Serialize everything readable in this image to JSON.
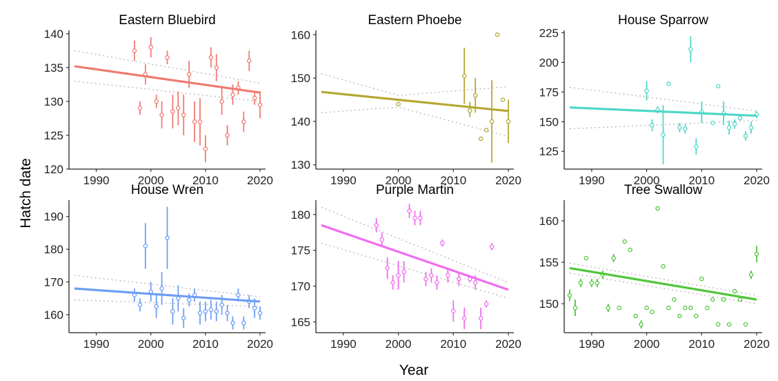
{
  "figure": {
    "ylabel": "Hatch date",
    "xlabel": "Year"
  },
  "chart_data": [
    {
      "type": "scatter",
      "title": "Eastern Bluebird",
      "color": "#F07A70",
      "xlim": [
        1985,
        2021
      ],
      "ylim": [
        120,
        140.5
      ],
      "yticks": [
        120,
        125,
        130,
        135,
        140
      ],
      "xticks": [
        1990,
        2000,
        2010,
        2020
      ],
      "points": [
        {
          "x": 1997,
          "y": 137.5,
          "lo": 136,
          "hi": 139
        },
        {
          "x": 1998,
          "y": 129,
          "lo": 128,
          "hi": 130
        },
        {
          "x": 1999,
          "y": 134,
          "lo": 132.5,
          "hi": 135.5
        },
        {
          "x": 2000,
          "y": 138,
          "lo": 136.5,
          "hi": 139.5
        },
        {
          "x": 2001,
          "y": 130,
          "lo": 129,
          "hi": 131
        },
        {
          "x": 2002,
          "y": 128,
          "lo": 126,
          "hi": 130
        },
        {
          "x": 2003,
          "y": 136.5,
          "lo": 135.5,
          "hi": 137.5
        },
        {
          "x": 2004,
          "y": 128.5,
          "lo": 126,
          "hi": 131
        },
        {
          "x": 2005,
          "y": 129,
          "lo": 126.5,
          "hi": 131.5
        },
        {
          "x": 2006,
          "y": 128,
          "lo": 125,
          "hi": 131
        },
        {
          "x": 2007,
          "y": 134,
          "lo": 132,
          "hi": 136
        },
        {
          "x": 2008,
          "y": 127,
          "lo": 124,
          "hi": 130
        },
        {
          "x": 2009,
          "y": 127,
          "lo": 123.5,
          "hi": 130.5
        },
        {
          "x": 2010,
          "y": 123,
          "lo": 121,
          "hi": 125
        },
        {
          "x": 2011,
          "y": 136.5,
          "lo": 135,
          "hi": 138
        },
        {
          "x": 2012,
          "y": 135,
          "lo": 133,
          "hi": 137
        },
        {
          "x": 2013,
          "y": 130,
          "lo": 128,
          "hi": 132
        },
        {
          "x": 2014,
          "y": 125,
          "lo": 123.5,
          "hi": 126.5
        },
        {
          "x": 2015,
          "y": 131,
          "lo": 129.5,
          "hi": 132.5
        },
        {
          "x": 2016,
          "y": 132,
          "lo": 131,
          "hi": 133
        },
        {
          "x": 2017,
          "y": 127,
          "lo": 125.5,
          "hi": 128.5
        },
        {
          "x": 2018,
          "y": 136,
          "lo": 134.5,
          "hi": 137.5
        },
        {
          "x": 2019,
          "y": 130.5,
          "lo": 129.5,
          "hi": 131.5
        },
        {
          "x": 2020,
          "y": 129.5,
          "lo": 127.5,
          "hi": 131.5
        }
      ],
      "fit": {
        "x": [
          1986,
          2020
        ],
        "y": [
          135.2,
          131.3
        ]
      },
      "ci_upper": {
        "x": [
          1986,
          2020
        ],
        "y": [
          137.5,
          132.7
        ]
      },
      "ci_lower": {
        "x": [
          1986,
          2020
        ],
        "y": [
          133,
          130
        ]
      }
    },
    {
      "type": "scatter",
      "title": "Eastern Phoebe",
      "color": "#B5A732",
      "xlim": [
        1985,
        2021
      ],
      "ylim": [
        129,
        161
      ],
      "yticks": [
        130,
        140,
        150,
        160
      ],
      "xticks": [
        1990,
        2000,
        2010,
        2020
      ],
      "points": [
        {
          "x": 2000,
          "y": 144,
          "lo": 144,
          "hi": 144
        },
        {
          "x": 2012,
          "y": 150.5,
          "lo": 144,
          "hi": 157
        },
        {
          "x": 2013,
          "y": 142.5,
          "lo": 141,
          "hi": 144.5
        },
        {
          "x": 2014,
          "y": 146,
          "lo": 142,
          "hi": 150
        },
        {
          "x": 2015,
          "y": 136,
          "lo": 136,
          "hi": 136
        },
        {
          "x": 2016,
          "y": 138,
          "lo": 138,
          "hi": 138
        },
        {
          "x": 2017,
          "y": 140,
          "lo": 130.5,
          "hi": 149.5
        },
        {
          "x": 2018,
          "y": 160,
          "lo": 160,
          "hi": 160
        },
        {
          "x": 2019,
          "y": 145,
          "lo": 145,
          "hi": 145
        },
        {
          "x": 2020,
          "y": 140,
          "lo": 135,
          "hi": 145
        }
      ],
      "fit": {
        "x": [
          1986,
          2020
        ],
        "y": [
          146.8,
          142.4
        ]
      },
      "ci_upper": {
        "x": [
          1986,
          2000,
          2020
        ],
        "y": [
          151,
          146,
          148
        ]
      },
      "ci_lower": {
        "x": [
          1986,
          2000,
          2020
        ],
        "y": [
          142,
          143.3,
          136.5
        ]
      }
    },
    {
      "type": "scatter",
      "title": "House Sparrow",
      "color": "#4ED7C8",
      "xlim": [
        1985,
        2021
      ],
      "ylim": [
        110,
        227
      ],
      "yticks": [
        125,
        150,
        175,
        200,
        225
      ],
      "xticks": [
        1990,
        2000,
        2010,
        2020
      ],
      "points": [
        {
          "x": 2000,
          "y": 176,
          "lo": 168,
          "hi": 184
        },
        {
          "x": 2001,
          "y": 147,
          "lo": 142,
          "hi": 152
        },
        {
          "x": 2002,
          "y": 160,
          "lo": 157,
          "hi": 163
        },
        {
          "x": 2003,
          "y": 139,
          "lo": 114,
          "hi": 164
        },
        {
          "x": 2004,
          "y": 182,
          "lo": 182,
          "hi": 182
        },
        {
          "x": 2006,
          "y": 145,
          "lo": 141,
          "hi": 149
        },
        {
          "x": 2007,
          "y": 144,
          "lo": 140,
          "hi": 148
        },
        {
          "x": 2008,
          "y": 211,
          "lo": 200,
          "hi": 222
        },
        {
          "x": 2009,
          "y": 129,
          "lo": 122,
          "hi": 136
        },
        {
          "x": 2010,
          "y": 158,
          "lo": 149,
          "hi": 167
        },
        {
          "x": 2012,
          "y": 149,
          "lo": 149,
          "hi": 149
        },
        {
          "x": 2013,
          "y": 180,
          "lo": 180,
          "hi": 180
        },
        {
          "x": 2014,
          "y": 157,
          "lo": 147,
          "hi": 167
        },
        {
          "x": 2015,
          "y": 145,
          "lo": 139,
          "hi": 151
        },
        {
          "x": 2016,
          "y": 148,
          "lo": 144,
          "hi": 152
        },
        {
          "x": 2017,
          "y": 153,
          "lo": 151,
          "hi": 155
        },
        {
          "x": 2018,
          "y": 138,
          "lo": 134,
          "hi": 142
        },
        {
          "x": 2019,
          "y": 145,
          "lo": 140,
          "hi": 150
        },
        {
          "x": 2020,
          "y": 156,
          "lo": 153,
          "hi": 159
        }
      ],
      "fit": {
        "x": [
          1986,
          2020
        ],
        "y": [
          162,
          155
        ]
      },
      "ci_upper": {
        "x": [
          1986,
          2020
        ],
        "y": [
          179,
          159
        ]
      },
      "ci_lower": {
        "x": [
          1986,
          2020
        ],
        "y": [
          144,
          151
        ]
      }
    },
    {
      "type": "scatter",
      "title": "House Wren",
      "color": "#6D9EF5",
      "xlim": [
        1985,
        2021
      ],
      "ylim": [
        154.5,
        195
      ],
      "yticks": [
        160,
        170,
        180,
        190
      ],
      "xticks": [
        1990,
        2000,
        2010,
        2020
      ],
      "points": [
        {
          "x": 1997,
          "y": 166,
          "lo": 164,
          "hi": 168
        },
        {
          "x": 1998,
          "y": 163,
          "lo": 161,
          "hi": 165
        },
        {
          "x": 1999,
          "y": 181,
          "lo": 174,
          "hi": 188
        },
        {
          "x": 2000,
          "y": 167,
          "lo": 164,
          "hi": 170
        },
        {
          "x": 2001,
          "y": 162.5,
          "lo": 159,
          "hi": 166
        },
        {
          "x": 2002,
          "y": 168,
          "lo": 163,
          "hi": 173
        },
        {
          "x": 2003,
          "y": 183.5,
          "lo": 174,
          "hi": 193
        },
        {
          "x": 2004,
          "y": 161,
          "lo": 157,
          "hi": 165
        },
        {
          "x": 2005,
          "y": 165,
          "lo": 161,
          "hi": 169
        },
        {
          "x": 2006,
          "y": 159,
          "lo": 156,
          "hi": 162
        },
        {
          "x": 2007,
          "y": 164.5,
          "lo": 162.5,
          "hi": 166.5
        },
        {
          "x": 2008,
          "y": 166,
          "lo": 164,
          "hi": 168
        },
        {
          "x": 2009,
          "y": 160.5,
          "lo": 157,
          "hi": 164
        },
        {
          "x": 2010,
          "y": 161,
          "lo": 158,
          "hi": 164
        },
        {
          "x": 2011,
          "y": 161.5,
          "lo": 158.5,
          "hi": 164.5
        },
        {
          "x": 2012,
          "y": 161,
          "lo": 158,
          "hi": 164
        },
        {
          "x": 2013,
          "y": 163,
          "lo": 160,
          "hi": 166
        },
        {
          "x": 2014,
          "y": 160.5,
          "lo": 158,
          "hi": 163
        },
        {
          "x": 2015,
          "y": 157.5,
          "lo": 155.5,
          "hi": 159.5
        },
        {
          "x": 2016,
          "y": 166,
          "lo": 164,
          "hi": 168
        },
        {
          "x": 2017,
          "y": 157.5,
          "lo": 155.5,
          "hi": 159.5
        },
        {
          "x": 2018,
          "y": 164,
          "lo": 162,
          "hi": 166
        },
        {
          "x": 2019,
          "y": 162,
          "lo": 159,
          "hi": 165
        },
        {
          "x": 2020,
          "y": 160.5,
          "lo": 158.5,
          "hi": 162.5
        }
      ],
      "fit": {
        "x": [
          1986,
          2020
        ],
        "y": [
          168,
          164
        ]
      },
      "ci_upper": {
        "x": [
          1986,
          2020
        ],
        "y": [
          172,
          165.5
        ]
      },
      "ci_lower": {
        "x": [
          1986,
          2020
        ],
        "y": [
          164.5,
          162.5
        ]
      }
    },
    {
      "type": "scatter",
      "title": "Purple Martin",
      "color": "#F06CF0",
      "xlim": [
        1985,
        2021
      ],
      "ylim": [
        163.5,
        182
      ],
      "yticks": [
        165,
        170,
        175,
        180
      ],
      "xticks": [
        1990,
        2000,
        2010,
        2020
      ],
      "points": [
        {
          "x": 1996,
          "y": 178.5,
          "lo": 177.5,
          "hi": 179.5
        },
        {
          "x": 1997,
          "y": 176.5,
          "lo": 175.5,
          "hi": 177.5
        },
        {
          "x": 1998,
          "y": 172.5,
          "lo": 171,
          "hi": 174
        },
        {
          "x": 1999,
          "y": 170.5,
          "lo": 169.5,
          "hi": 171.5
        },
        {
          "x": 2000,
          "y": 171.5,
          "lo": 169.5,
          "hi": 173.5
        },
        {
          "x": 2001,
          "y": 172,
          "lo": 170.5,
          "hi": 173.5
        },
        {
          "x": 2002,
          "y": 180.5,
          "lo": 179.5,
          "hi": 181.5
        },
        {
          "x": 2003,
          "y": 179.5,
          "lo": 178.5,
          "hi": 180.5
        },
        {
          "x": 2004,
          "y": 179.5,
          "lo": 178.5,
          "hi": 180.5
        },
        {
          "x": 2005,
          "y": 171,
          "lo": 170,
          "hi": 172
        },
        {
          "x": 2006,
          "y": 171.5,
          "lo": 170.5,
          "hi": 172.5
        },
        {
          "x": 2007,
          "y": 170.5,
          "lo": 169.5,
          "hi": 171.5
        },
        {
          "x": 2008,
          "y": 176,
          "lo": 175.5,
          "hi": 176.5
        },
        {
          "x": 2009,
          "y": 171.5,
          "lo": 170.5,
          "hi": 172.5
        },
        {
          "x": 2010,
          "y": 166.5,
          "lo": 165,
          "hi": 168
        },
        {
          "x": 2011,
          "y": 171,
          "lo": 170,
          "hi": 172
        },
        {
          "x": 2012,
          "y": 165.5,
          "lo": 164,
          "hi": 167
        },
        {
          "x": 2013,
          "y": 171,
          "lo": 170.5,
          "hi": 171.5
        },
        {
          "x": 2014,
          "y": 170.5,
          "lo": 169.5,
          "hi": 171.5
        },
        {
          "x": 2015,
          "y": 165.5,
          "lo": 164,
          "hi": 167
        },
        {
          "x": 2016,
          "y": 167.5,
          "lo": 167,
          "hi": 168
        },
        {
          "x": 2017,
          "y": 175.5,
          "lo": 175,
          "hi": 176
        }
      ],
      "fit": {
        "x": [
          1986,
          2020
        ],
        "y": [
          178.5,
          169.5
        ]
      },
      "ci_upper": {
        "x": [
          1986,
          2020
        ],
        "y": [
          181,
          170.5
        ]
      },
      "ci_lower": {
        "x": [
          1986,
          2020
        ],
        "y": [
          176,
          168.3
        ]
      }
    },
    {
      "type": "scatter",
      "title": "Tree Swallow",
      "color": "#4FC63A",
      "xlim": [
        1985,
        2021
      ],
      "ylim": [
        146.5,
        162.5
      ],
      "yticks": [
        150,
        155,
        160
      ],
      "xticks": [
        1990,
        2000,
        2010,
        2020
      ],
      "points": [
        {
          "x": 1986,
          "y": 151,
          "lo": 150.3,
          "hi": 151.7
        },
        {
          "x": 1987,
          "y": 149.5,
          "lo": 148.5,
          "hi": 150.5
        },
        {
          "x": 1988,
          "y": 152.5,
          "lo": 152,
          "hi": 153
        },
        {
          "x": 1989,
          "y": 155.5,
          "lo": 155.5,
          "hi": 155.5
        },
        {
          "x": 1990,
          "y": 152.5,
          "lo": 152,
          "hi": 153
        },
        {
          "x": 1991,
          "y": 152.5,
          "lo": 152,
          "hi": 153
        },
        {
          "x": 1992,
          "y": 153.5,
          "lo": 153,
          "hi": 154
        },
        {
          "x": 1993,
          "y": 149.5,
          "lo": 149,
          "hi": 150
        },
        {
          "x": 1994,
          "y": 155.5,
          "lo": 155,
          "hi": 156
        },
        {
          "x": 1995,
          "y": 149.5,
          "lo": 149.5,
          "hi": 149.5
        },
        {
          "x": 1996,
          "y": 157.5,
          "lo": 157.5,
          "hi": 157.5
        },
        {
          "x": 1997,
          "y": 156.5,
          "lo": 156.5,
          "hi": 156.5
        },
        {
          "x": 1998,
          "y": 148.5,
          "lo": 148.5,
          "hi": 148.5
        },
        {
          "x": 1999,
          "y": 147.5,
          "lo": 147,
          "hi": 148
        },
        {
          "x": 2000,
          "y": 149.5,
          "lo": 149.5,
          "hi": 149.5
        },
        {
          "x": 2001,
          "y": 149,
          "lo": 149,
          "hi": 149
        },
        {
          "x": 2002,
          "y": 161.5,
          "lo": 161.5,
          "hi": 161.5
        },
        {
          "x": 2003,
          "y": 154.5,
          "lo": 154.5,
          "hi": 154.5
        },
        {
          "x": 2004,
          "y": 149.5,
          "lo": 149.5,
          "hi": 149.5
        },
        {
          "x": 2005,
          "y": 150.5,
          "lo": 150.5,
          "hi": 150.5
        },
        {
          "x": 2006,
          "y": 148.5,
          "lo": 148.5,
          "hi": 148.5
        },
        {
          "x": 2007,
          "y": 149.5,
          "lo": 149.5,
          "hi": 149.5
        },
        {
          "x": 2008,
          "y": 149.5,
          "lo": 149.5,
          "hi": 149.5
        },
        {
          "x": 2009,
          "y": 148.5,
          "lo": 148.5,
          "hi": 148.5
        },
        {
          "x": 2010,
          "y": 153,
          "lo": 153,
          "hi": 153
        },
        {
          "x": 2011,
          "y": 149.5,
          "lo": 149.5,
          "hi": 149.5
        },
        {
          "x": 2012,
          "y": 150.5,
          "lo": 150.5,
          "hi": 150.5
        },
        {
          "x": 2013,
          "y": 147.5,
          "lo": 147.5,
          "hi": 147.5
        },
        {
          "x": 2014,
          "y": 150.5,
          "lo": 150.5,
          "hi": 150.5
        },
        {
          "x": 2015,
          "y": 147.5,
          "lo": 147.5,
          "hi": 147.5
        },
        {
          "x": 2016,
          "y": 151.5,
          "lo": 151.5,
          "hi": 151.5
        },
        {
          "x": 2017,
          "y": 150.5,
          "lo": 150.5,
          "hi": 150.5
        },
        {
          "x": 2018,
          "y": 147.5,
          "lo": 147.5,
          "hi": 147.5
        },
        {
          "x": 2019,
          "y": 153.5,
          "lo": 153,
          "hi": 154
        },
        {
          "x": 2020,
          "y": 156,
          "lo": 155,
          "hi": 157
        }
      ],
      "fit": {
        "x": [
          1986,
          2020
        ],
        "y": [
          154.3,
          150.5
        ]
      },
      "ci_upper": {
        "x": [
          1986,
          2020
        ],
        "y": [
          154.9,
          151
        ]
      },
      "ci_lower": {
        "x": [
          1986,
          2020
        ],
        "y": [
          153.7,
          150
        ]
      }
    }
  ]
}
